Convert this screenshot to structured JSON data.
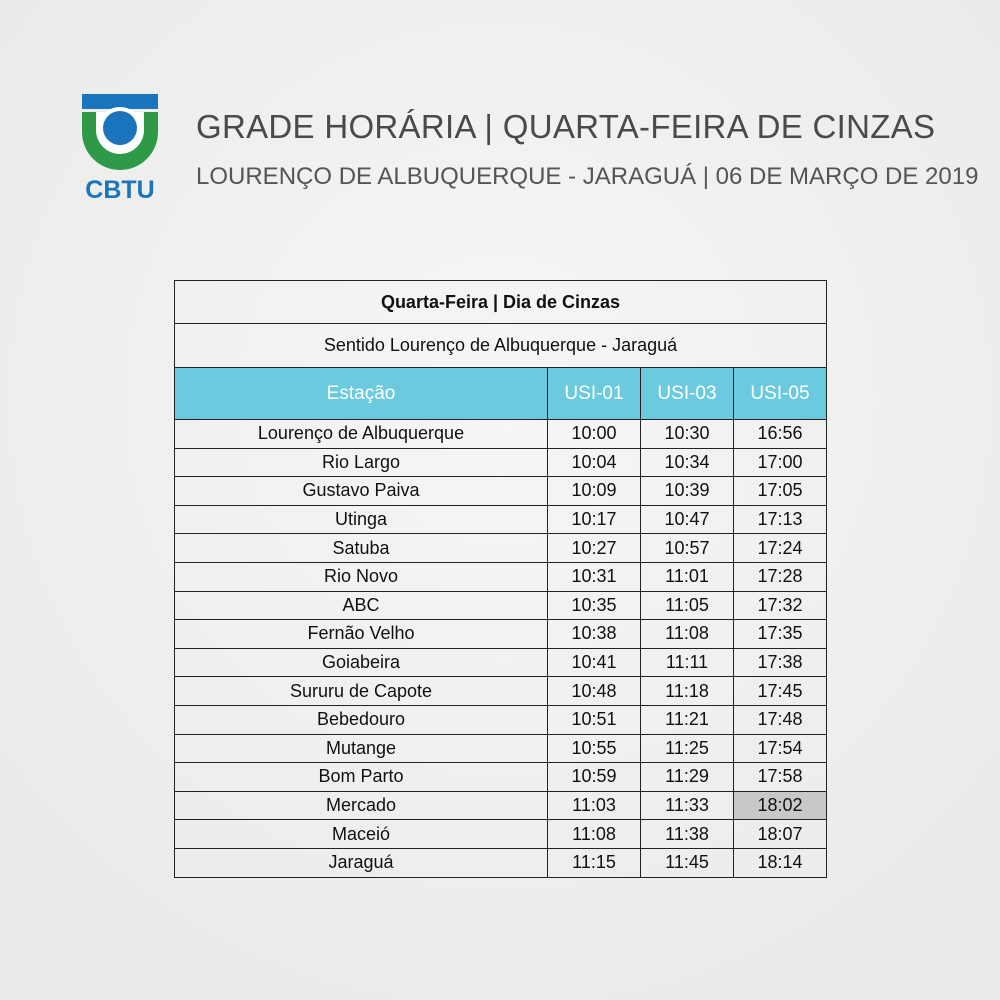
{
  "header": {
    "logo_text": "CBTU",
    "title": "GRADE HORÁRIA | QUARTA-FEIRA DE CINZAS",
    "subtitle": "LOURENÇO DE ALBUQUERQUE - JARAGUÁ | 06 DE MARÇO DE 2019"
  },
  "colors": {
    "logo_blue": "#1b75bc",
    "logo_green": "#2e9a48",
    "header_bg": "#6ccadf",
    "highlight": "#c8c8c8"
  },
  "table": {
    "title": "Quarta-Feira | Dia de Cinzas",
    "direction": "Sentido Lourenço de Albuquerque - Jaraguá",
    "columns": [
      "Estação",
      "USI-01",
      "USI-03",
      "USI-05"
    ],
    "rows": [
      [
        "Lourenço de Albuquerque",
        "10:00",
        "10:30",
        "16:56"
      ],
      [
        "Rio Largo",
        "10:04",
        "10:34",
        "17:00"
      ],
      [
        "Gustavo Paiva",
        "10:09",
        "10:39",
        "17:05"
      ],
      [
        "Utinga",
        "10:17",
        "10:47",
        "17:13"
      ],
      [
        "Satuba",
        "10:27",
        "10:57",
        "17:24"
      ],
      [
        "Rio Novo",
        "10:31",
        "11:01",
        "17:28"
      ],
      [
        "ABC",
        "10:35",
        "11:05",
        "17:32"
      ],
      [
        "Fernão Velho",
        "10:38",
        "11:08",
        "17:35"
      ],
      [
        "Goiabeira",
        "10:41",
        "11:11",
        "17:38"
      ],
      [
        "Sururu de Capote",
        "10:48",
        "11:18",
        "17:45"
      ],
      [
        "Bebedouro",
        "10:51",
        "11:21",
        "17:48"
      ],
      [
        "Mutange",
        "10:55",
        "11:25",
        "17:54"
      ],
      [
        "Bom Parto",
        "10:59",
        "11:29",
        "17:58"
      ],
      [
        "Mercado",
        "11:03",
        "11:33",
        "18:02"
      ],
      [
        "Maceió",
        "11:08",
        "11:38",
        "18:07"
      ],
      [
        "Jaraguá",
        "11:15",
        "11:45",
        "18:14"
      ]
    ],
    "highlighted_cell": {
      "row": 13,
      "col": 3
    }
  }
}
